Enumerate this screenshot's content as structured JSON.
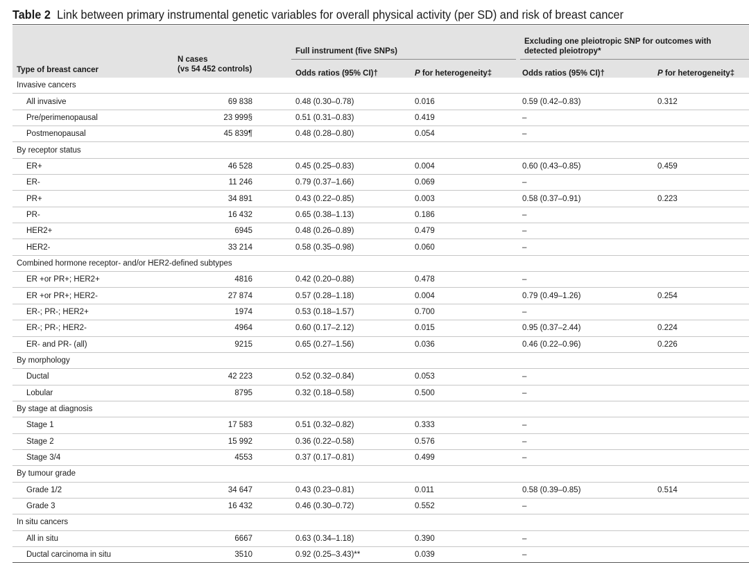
{
  "title": {
    "label": "Table 2",
    "text": "Link between primary instrumental genetic variables for overall physical activity (per SD) and risk of breast cancer"
  },
  "headers": {
    "type": "Type of breast cancer",
    "n_cases_line1": "N cases",
    "n_cases_line2": "(vs 54 452 controls)",
    "group_full": "Full instrument (five SNPs)",
    "group_excl": "Excluding one pleiotropic SNP for outcomes with detected pleiotropy*",
    "or1": "Odds ratios (95% CI)†",
    "phet1_italic": "P",
    "phet1_rest": " for heterogeneity‡",
    "or2": "Odds ratios (95% CI)†",
    "phet2_italic": "P",
    "phet2_rest": " for heterogeneity‡"
  },
  "rows": [
    {
      "type": "Invasive cancers",
      "section": true
    },
    {
      "type": "All invasive",
      "n": "69 838",
      "or1": "0.48 (0.30–0.78)",
      "p1": "0.016",
      "or2": "0.59 (0.42–0.83)",
      "p2": "0.312"
    },
    {
      "type": "Pre/perimenopausal",
      "n": "23 999§",
      "or1": "0.51 (0.31–0.83)",
      "p1": "0.419",
      "or2": "–",
      "p2": ""
    },
    {
      "type": "Postmenopausal",
      "n": "45 839¶",
      "or1": "0.48 (0.28–0.80)",
      "p1": "0.054",
      "or2": "–",
      "p2": ""
    },
    {
      "type": "By receptor status",
      "section": true
    },
    {
      "type": "ER+",
      "n": "46 528",
      "or1": "0.45 (0.25–0.83)",
      "p1": "0.004",
      "or2": "0.60 (0.43–0.85)",
      "p2": "0.459"
    },
    {
      "type": "ER-",
      "n": "11 246",
      "or1": "0.79 (0.37–1.66)",
      "p1": "0.069",
      "or2": "–",
      "p2": ""
    },
    {
      "type": "PR+",
      "n": "34 891",
      "or1": "0.43 (0.22–0.85)",
      "p1": "0.003",
      "or2": "0.58 (0.37–0.91)",
      "p2": "0.223"
    },
    {
      "type": "PR-",
      "n": "16 432",
      "or1": "0.65 (0.38–1.13)",
      "p1": "0.186",
      "or2": "–",
      "p2": ""
    },
    {
      "type": "HER2+",
      "n": "6945",
      "or1": "0.48 (0.26–0.89)",
      "p1": "0.479",
      "or2": "–",
      "p2": ""
    },
    {
      "type": "HER2-",
      "n": "33 214",
      "or1": "0.58 (0.35–0.98)",
      "p1": "0.060",
      "or2": "–",
      "p2": ""
    },
    {
      "type": "Combined hormone receptor- and/or HER2-defined subtypes",
      "section": true
    },
    {
      "type": "ER +or PR+; HER2+",
      "n": "4816",
      "or1": "0.42 (0.20–0.88)",
      "p1": "0.478",
      "or2": "–",
      "p2": ""
    },
    {
      "type": "ER +or PR+; HER2-",
      "n": "27 874",
      "or1": "0.57 (0.28–1.18)",
      "p1": "0.004",
      "or2": "0.79 (0.49–1.26)",
      "p2": "0.254"
    },
    {
      "type": "ER-; PR-; HER2+",
      "n": "1974",
      "or1": "0.53 (0.18–1.57)",
      "p1": "0.700",
      "or2": "–",
      "p2": ""
    },
    {
      "type": "ER-; PR-; HER2-",
      "n": "4964",
      "or1": "0.60 (0.17–2.12)",
      "p1": "0.015",
      "or2": "0.95 (0.37–2.44)",
      "p2": "0.224"
    },
    {
      "type": "ER- and PR- (all)",
      "n": "9215",
      "or1": "0.65 (0.27–1.56)",
      "p1": "0.036",
      "or2": "0.46 (0.22–0.96)",
      "p2": "0.226"
    },
    {
      "type": "By morphology",
      "section": true
    },
    {
      "type": "Ductal",
      "n": "42 223",
      "or1": "0.52 (0.32–0.84)",
      "p1": "0.053",
      "or2": "–",
      "p2": ""
    },
    {
      "type": "Lobular",
      "n": "8795",
      "or1": "0.32 (0.18–0.58)",
      "p1": "0.500",
      "or2": "–",
      "p2": ""
    },
    {
      "type": "By stage at diagnosis",
      "section": true
    },
    {
      "type": "Stage 1",
      "n": "17 583",
      "or1": "0.51 (0.32–0.82)",
      "p1": "0.333",
      "or2": "–",
      "p2": ""
    },
    {
      "type": "Stage 2",
      "n": "15 992",
      "or1": "0.36 (0.22–0.58)",
      "p1": "0.576",
      "or2": "–",
      "p2": ""
    },
    {
      "type": "Stage 3/4",
      "n": "4553",
      "or1": "0.37 (0.17–0.81)",
      "p1": "0.499",
      "or2": "–",
      "p2": ""
    },
    {
      "type": "By tumour grade",
      "section": true
    },
    {
      "type": "Grade 1/2",
      "n": "34 647",
      "or1": "0.43 (0.23–0.81)",
      "p1": "0.011",
      "or2": "0.58 (0.39–0.85)",
      "p2": "0.514"
    },
    {
      "type": "Grade 3",
      "n": "16 432",
      "or1": "0.46 (0.30–0.72)",
      "p1": "0.552",
      "or2": "–",
      "p2": ""
    },
    {
      "type": "In situ cancers",
      "section": true
    },
    {
      "type": "All in situ",
      "n": "6667",
      "or1": "0.63 (0.34–1.18)",
      "p1": "0.390",
      "or2": "–",
      "p2": ""
    },
    {
      "type": "Ductal carcinoma in situ",
      "n": "3510",
      "or1": "0.92 (0.25–3.43)**",
      "p1": "0.039",
      "or2": "–",
      "p2": ""
    }
  ],
  "colors": {
    "header_bg": "#e3e3e3",
    "rule": "#c6c6c6"
  }
}
